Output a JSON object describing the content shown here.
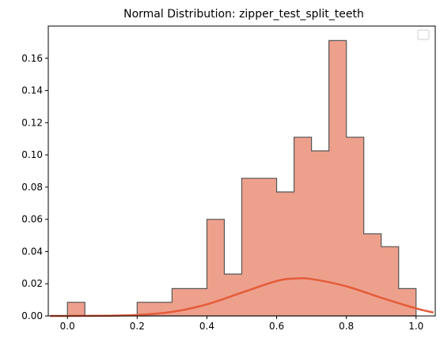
{
  "chart_data": {
    "type": "bar",
    "title": "Normal Distribution: zipper_test_split_teeth",
    "xlabel": "",
    "ylabel": "",
    "xlim": [
      -0.055,
      1.055
    ],
    "ylim": [
      0,
      0.18
    ],
    "x_ticks": [
      "0.0",
      "0.2",
      "0.4",
      "0.6",
      "0.8",
      "1.0"
    ],
    "y_ticks": [
      "0.00",
      "0.02",
      "0.04",
      "0.06",
      "0.08",
      "0.10",
      "0.12",
      "0.14",
      "0.16"
    ],
    "legend": {
      "placement": "top-right",
      "entries": []
    },
    "grid": false,
    "histogram": {
      "bin_edges": [
        -0.05,
        0.0,
        0.05,
        0.1,
        0.15,
        0.2,
        0.25,
        0.3,
        0.35,
        0.4,
        0.45,
        0.5,
        0.55,
        0.6,
        0.65,
        0.7,
        0.75,
        0.8,
        0.85,
        0.9,
        0.95,
        1.0
      ],
      "values": [
        0.0,
        0.0085,
        0.0,
        0.0,
        0.0,
        0.0085,
        0.0085,
        0.017,
        0.017,
        0.06,
        0.026,
        0.0855,
        0.0855,
        0.077,
        0.111,
        0.1025,
        0.171,
        0.111,
        0.051,
        0.043,
        0.017
      ],
      "color": "#eda08c",
      "edge_color": "#555555"
    },
    "curve": {
      "x": [
        -0.05,
        0.0,
        0.1,
        0.2,
        0.3,
        0.4,
        0.5,
        0.6,
        0.65,
        0.7,
        0.8,
        0.9,
        1.0,
        1.05
      ],
      "y": [
        0.0,
        0.0,
        0.0001,
        0.0006,
        0.0025,
        0.0072,
        0.0145,
        0.0217,
        0.0232,
        0.0229,
        0.0184,
        0.0113,
        0.0047,
        0.0021
      ],
      "color": "#e45c3a"
    }
  }
}
